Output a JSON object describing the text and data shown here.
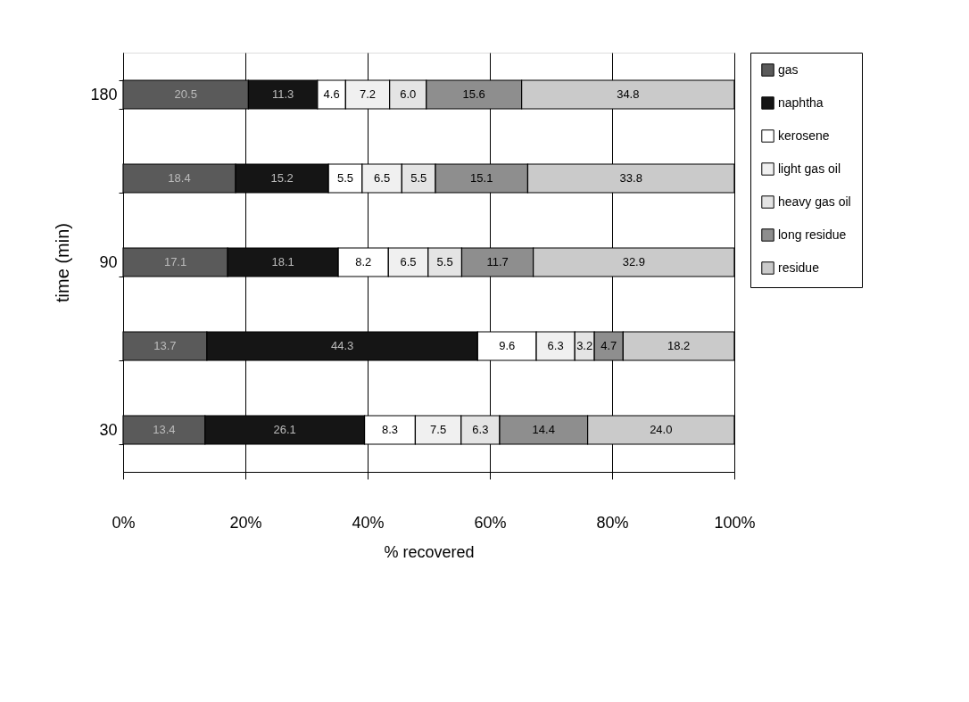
{
  "chart_data": {
    "type": "bar",
    "orientation": "horizontal",
    "stacked": true,
    "xlabel": "% recovered",
    "ylabel": "time (min)",
    "categories": [
      "180",
      null,
      "90",
      null,
      "30"
    ],
    "series": [
      {
        "name": "gas",
        "color": "#5a5a5a",
        "values": [
          20.5,
          18.4,
          17.1,
          13.7,
          13.4
        ],
        "value_labels": [
          "20.5",
          "18.4",
          "17.1",
          "13.7",
          "13.4"
        ]
      },
      {
        "name": "naphtha",
        "color": "#151515",
        "values": [
          11.3,
          15.2,
          18.1,
          44.3,
          26.1
        ],
        "value_labels": [
          "11.3",
          "15.2",
          "18.1",
          "44.3",
          "26.1"
        ]
      },
      {
        "name": "kerosene",
        "color": "#ffffff",
        "values": [
          4.6,
          5.5,
          8.2,
          9.6,
          8.3
        ],
        "value_labels": [
          "4.6",
          "5.5",
          "8.2",
          "9.6",
          "8.3"
        ]
      },
      {
        "name": "light gas oil",
        "color": "#f0f0f0",
        "values": [
          7.2,
          6.5,
          6.5,
          6.3,
          7.5
        ],
        "value_labels": [
          "7.2",
          "6.5",
          "6.5",
          "6.3",
          "7.5"
        ]
      },
      {
        "name": "heavy gas oil",
        "color": "#e4e4e4",
        "values": [
          6.0,
          5.5,
          5.5,
          3.2,
          6.3
        ],
        "value_labels": [
          "6.0",
          "5.5",
          "5.5",
          "3.2",
          "6.3"
        ]
      },
      {
        "name": "long residue",
        "color": "#8e8e8e",
        "values": [
          15.6,
          15.1,
          11.7,
          4.7,
          14.4
        ],
        "value_labels": [
          "15.6",
          "15.1",
          "11.7",
          "4.7",
          "14.4"
        ]
      },
      {
        "name": "residue",
        "color": "#cacaca",
        "values": [
          34.8,
          33.8,
          32.9,
          18.2,
          24.0
        ],
        "value_labels": [
          "34.8",
          "33.8",
          "32.9",
          "18.2",
          "24.0"
        ]
      }
    ],
    "xlim": [
      0,
      100
    ],
    "xticks": [
      {
        "value": 0,
        "label": "0%"
      },
      {
        "value": 20,
        "label": "20%"
      },
      {
        "value": 40,
        "label": "40%"
      },
      {
        "value": 60,
        "label": "60%"
      },
      {
        "value": 80,
        "label": "80%"
      },
      {
        "value": 100,
        "label": "100%"
      }
    ],
    "grid": "x",
    "legend": "right"
  }
}
